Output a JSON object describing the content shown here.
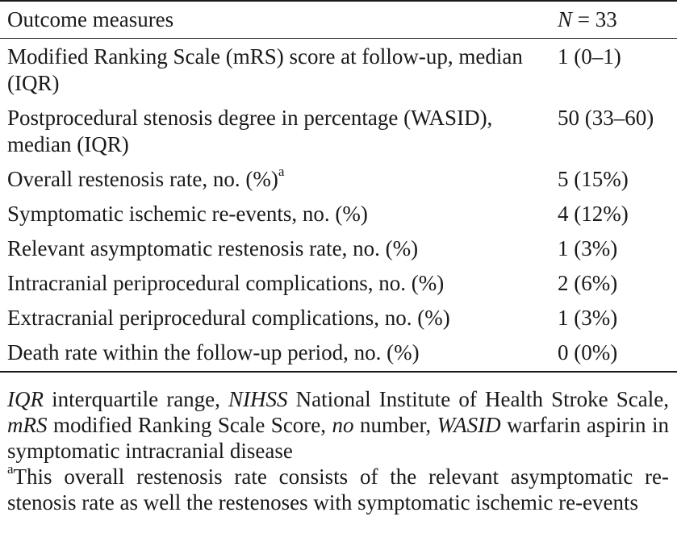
{
  "table": {
    "header": {
      "measure": "Outcome measures",
      "n_italic": "N",
      "n_value": " = 33"
    },
    "rows": [
      {
        "measure": "Modified Ranking Scale (mRS) score at follow-up, median (IQR)",
        "value": "1 (0–1)"
      },
      {
        "measure": "Postprocedural stenosis degree in percentage (WASID), median (IQR)",
        "value": "50 (33–60)"
      },
      {
        "measure": "Overall restenosis rate, no. (%)",
        "sup": "a",
        "value": "5 (15%)"
      },
      {
        "measure": "Symptomatic ischemic re-events, no. (%)",
        "value": "4 (12%)"
      },
      {
        "measure": "Relevant asymptomatic restenosis rate, no. (%)",
        "value": "1 (3%)"
      },
      {
        "measure": "Intracranial periprocedural complications, no. (%)",
        "value": "2 (6%)"
      },
      {
        "measure": "Extracranial periprocedural complications, no. (%)",
        "value": "1 (3%)"
      },
      {
        "measure": "Death rate within the follow-up period, no. (%)",
        "value": "0 (0%)"
      }
    ]
  },
  "footnotes": {
    "abbreviations": [
      {
        "term": "IQR",
        "definition": " interquartile range, "
      },
      {
        "term": "NIHSS",
        "definition": " National Institute of Health Stroke Scale, "
      },
      {
        "term": "mRS",
        "definition": " modified Ranking Scale Score, "
      },
      {
        "term": "no",
        "definition": " number, "
      },
      {
        "term": "WASID",
        "definition": " warfarin aspirin in symptomatic intracranial disease"
      }
    ],
    "note_a": {
      "marker": "a",
      "text": "This overall restenosis rate consists of the relevant asymptomatic re-stenosis rate as well the restenoses with symptomatic ischemic re-events"
    }
  }
}
